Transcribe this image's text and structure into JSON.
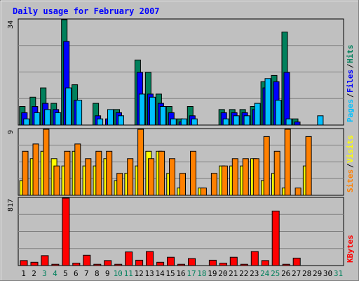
{
  "chart_data": {
    "type": "bar",
    "title": "Daily usage for February 2007",
    "days": [
      1,
      2,
      3,
      4,
      5,
      6,
      7,
      8,
      9,
      10,
      11,
      12,
      13,
      14,
      15,
      16,
      17,
      18,
      19,
      20,
      21,
      22,
      23,
      24,
      25,
      26,
      27,
      28,
      29,
      30,
      31
    ],
    "weekend_days": [
      3,
      4,
      10,
      11,
      17,
      18,
      24,
      25,
      31
    ],
    "colors": {
      "hits": "#00805c",
      "files": "#0000ff",
      "pages": "#00c0ff",
      "visits": "#ffff00",
      "sites": "#ff8000",
      "kbytes": "#ff0000",
      "title": "#0000ff",
      "weekday_label": "#000000",
      "weekend_label": "#00805c"
    },
    "panels": [
      {
        "id": "usage",
        "max_label": "34",
        "ylim": [
          0,
          34
        ],
        "legend": [
          {
            "label": "Hits",
            "color": "#00805c"
          },
          {
            "label": "Files",
            "color": "#0000ff"
          },
          {
            "label": "Pages",
            "color": "#00c0ff"
          }
        ],
        "series": [
          {
            "name": "Hits",
            "values": [
              6,
              9,
              12,
              7,
              34,
              13,
              0,
              7,
              0,
              5,
              0,
              21,
              17,
              10,
              6,
              2,
              6,
              0,
              0,
              5,
              5,
              5,
              6,
              14,
              16,
              30,
              2,
              0,
              0,
              0,
              0
            ]
          },
          {
            "name": "Files",
            "values": [
              4,
              6,
              7,
              5,
              27,
              8,
              0,
              3,
              2,
              4,
              0,
              17,
              10,
              7,
              4,
              1,
              3,
              0,
              0,
              4,
              4,
              4,
              5,
              12,
              14,
              17,
              1,
              0,
              0,
              0,
              0
            ]
          },
          {
            "name": "Pages",
            "values": [
              2,
              4,
              5,
              4,
              12,
              8,
              0,
              2,
              5,
              3,
              0,
              10,
              9,
              6,
              2,
              2,
              2,
              0,
              0,
              2,
              3,
              3,
              7,
              15,
              8,
              2,
              0,
              0,
              3,
              0,
              0
            ]
          }
        ]
      },
      {
        "id": "visitors",
        "max_label": "9",
        "ylim": [
          0,
          9
        ],
        "legend": [
          {
            "label": "Visits",
            "color": "#ffff00"
          },
          {
            "label": "Sites",
            "color": "#ff8000"
          }
        ],
        "series": [
          {
            "name": "Visits",
            "values": [
              2,
              5,
              6,
              5,
              4,
              6,
              4,
              4,
              5,
              2,
              3,
              4,
              6,
              6,
              3,
              1,
              0,
              1,
              0,
              4,
              4,
              4,
              5,
              2,
              3,
              1,
              0,
              4,
              0,
              0,
              0
            ]
          },
          {
            "name": "Sites",
            "values": [
              6,
              7,
              9,
              4,
              6,
              7,
              5,
              6,
              6,
              3,
              5,
              9,
              5,
              6,
              5,
              3,
              6,
              1,
              3,
              4,
              5,
              5,
              5,
              8,
              6,
              9,
              1,
              8,
              0,
              0,
              0
            ]
          }
        ]
      },
      {
        "id": "kbytes",
        "max_label": "817",
        "ylim": [
          0,
          817
        ],
        "legend": [
          {
            "label": "KBytes",
            "color": "#ff0000"
          }
        ],
        "series": [
          {
            "name": "KBytes",
            "values": [
              60,
              40,
              120,
              15,
              817,
              30,
              125,
              15,
              60,
              15,
              165,
              65,
              170,
              40,
              100,
              15,
              85,
              0,
              65,
              30,
              100,
              15,
              170,
              60,
              660,
              15,
              90,
              0,
              0,
              0,
              0
            ]
          }
        ]
      }
    ]
  }
}
